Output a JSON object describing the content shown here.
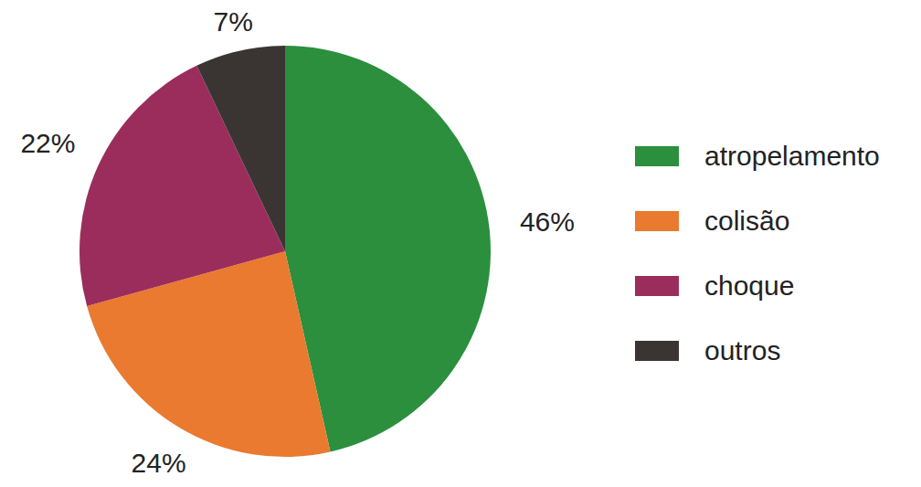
{
  "chart_data": {
    "type": "pie",
    "categories": [
      "atropelamento",
      "colisão",
      "choque",
      "outros"
    ],
    "values": [
      46,
      24,
      22,
      7
    ],
    "value_labels": [
      "46%",
      "24%",
      "22%",
      "7%"
    ],
    "colors": [
      "#2b8f3e",
      "#e97a2f",
      "#9b2d5c",
      "#3a3533"
    ],
    "data_labels": true,
    "legend": "right"
  }
}
